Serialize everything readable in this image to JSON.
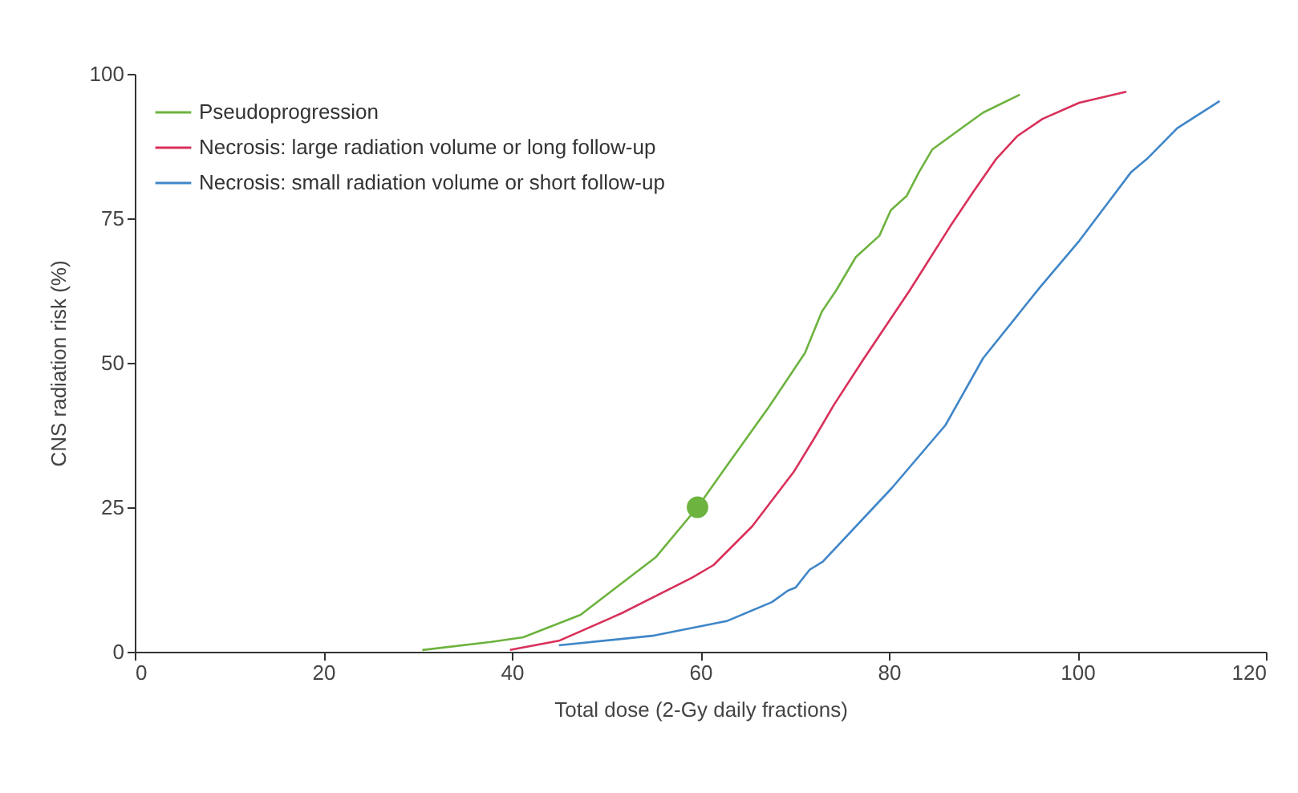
{
  "chart_data": {
    "type": "line",
    "xlabel": "Total dose (2-Gy daily fractions)",
    "ylabel": "CNS radiation risk (%)",
    "xlim": [
      0,
      120
    ],
    "xticks": [
      0,
      20,
      40,
      60,
      80,
      100,
      120
    ],
    "ylim": [
      0,
      100
    ],
    "yticks": [
      0,
      25,
      50,
      75,
      100
    ],
    "grid": false,
    "legend": "top left",
    "marker": "none",
    "series": [
      {
        "name": "Pseudoprogression",
        "color": "#6db33f",
        "x": [
          30.5,
          37.8,
          41.2,
          47.3,
          55.3,
          59.7,
          62.6,
          67.2,
          71.1,
          72.9,
          74.4,
          76.5,
          79,
          80.2,
          81.9,
          83.2,
          84.6,
          87.7,
          90,
          93.9
        ],
        "values": [
          0.3,
          1.7,
          2.5,
          6.4,
          16.4,
          25,
          31.7,
          42.2,
          51.7,
          58.9,
          62.5,
          68.3,
          72,
          76.4,
          78.9,
          83,
          86.9,
          90.6,
          93.3,
          96.4
        ]
      },
      {
        "name": "Necrosis: large radiation volume or long follow-up",
        "color": "#d9305a",
        "x": [
          39.8,
          45,
          51.7,
          59.1,
          61.4,
          65.5,
          69.9,
          72,
          74.2,
          77.3,
          82.2,
          86.5,
          89,
          91.4,
          93.6,
          96.3,
          100.2,
          105.2
        ],
        "values": [
          0.3,
          1.9,
          6.7,
          12.8,
          15,
          21.7,
          31.1,
          36.7,
          42.8,
          50.6,
          62.5,
          73.6,
          79.7,
          85.3,
          89.2,
          92.2,
          95,
          96.9
        ]
      },
      {
        "name": "Necrosis: small radiation volume or short follow-up",
        "color": "#3f86c8",
        "x": [
          45,
          55.1,
          62.8,
          67.6,
          69.3,
          70.1,
          71.6,
          73,
          80.3,
          86,
          90,
          96,
          100.2,
          105.7,
          107.4,
          110.6,
          115.1
        ],
        "values": [
          1.1,
          2.8,
          5.3,
          8.6,
          10.6,
          11.1,
          14.2,
          15.6,
          28.3,
          39.2,
          50.8,
          63,
          71.1,
          83,
          85.3,
          90.6,
          95.3
        ]
      },
      {
        "type": "scatter",
        "marker": "circle",
        "color": "#6db33f",
        "x": [
          59.7
        ],
        "values": [
          25
        ]
      }
    ]
  }
}
